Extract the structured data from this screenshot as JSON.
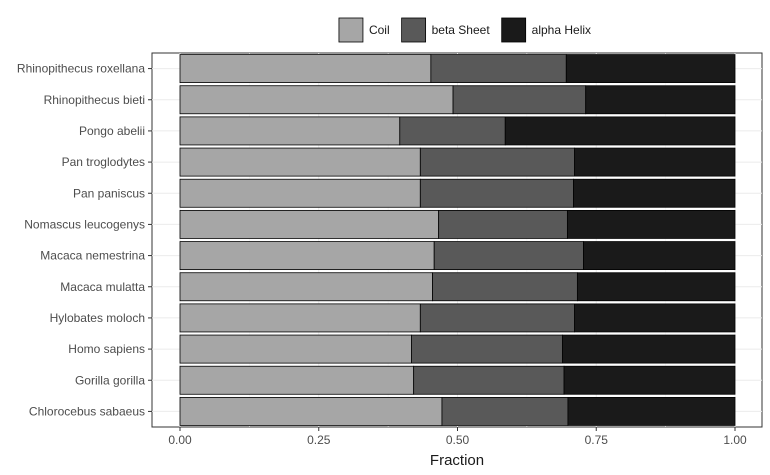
{
  "chart_data": {
    "type": "bar",
    "orientation": "horizontal",
    "stacked": true,
    "xlabel": "Fraction",
    "ylabel": "",
    "xlim": [
      0,
      1
    ],
    "x_ticks": [
      0,
      0.25,
      0.5,
      0.75,
      1.0
    ],
    "x_tick_labels": [
      "0.00",
      "0.25",
      "0.50",
      "0.75",
      "1.00"
    ],
    "grid": true,
    "legend_position": "top",
    "categories": [
      "Rhinopithecus roxellana",
      "Rhinopithecus bieti",
      "Pongo abelii",
      "Pan troglodytes",
      "Pan paniscus",
      "Nomascus leucogenys",
      "Macaca nemestrina",
      "Macaca mulatta",
      "Hylobates moloch",
      "Homo sapiens",
      "Gorilla gorilla",
      "Chlorocebus sabaeus"
    ],
    "series": [
      {
        "name": "Coil",
        "color": "#a6a6a6",
        "values": [
          0.452,
          0.492,
          0.396,
          0.433,
          0.433,
          0.466,
          0.458,
          0.455,
          0.433,
          0.417,
          0.421,
          0.472
        ]
      },
      {
        "name": "beta Sheet",
        "color": "#595959",
        "values": [
          0.244,
          0.239,
          0.19,
          0.278,
          0.276,
          0.232,
          0.269,
          0.261,
          0.278,
          0.272,
          0.271,
          0.227
        ]
      },
      {
        "name": "alpha Helix",
        "color": "#1a1a1a",
        "values": [
          0.304,
          0.269,
          0.414,
          0.289,
          0.291,
          0.302,
          0.273,
          0.284,
          0.289,
          0.311,
          0.308,
          0.301
        ]
      }
    ]
  }
}
